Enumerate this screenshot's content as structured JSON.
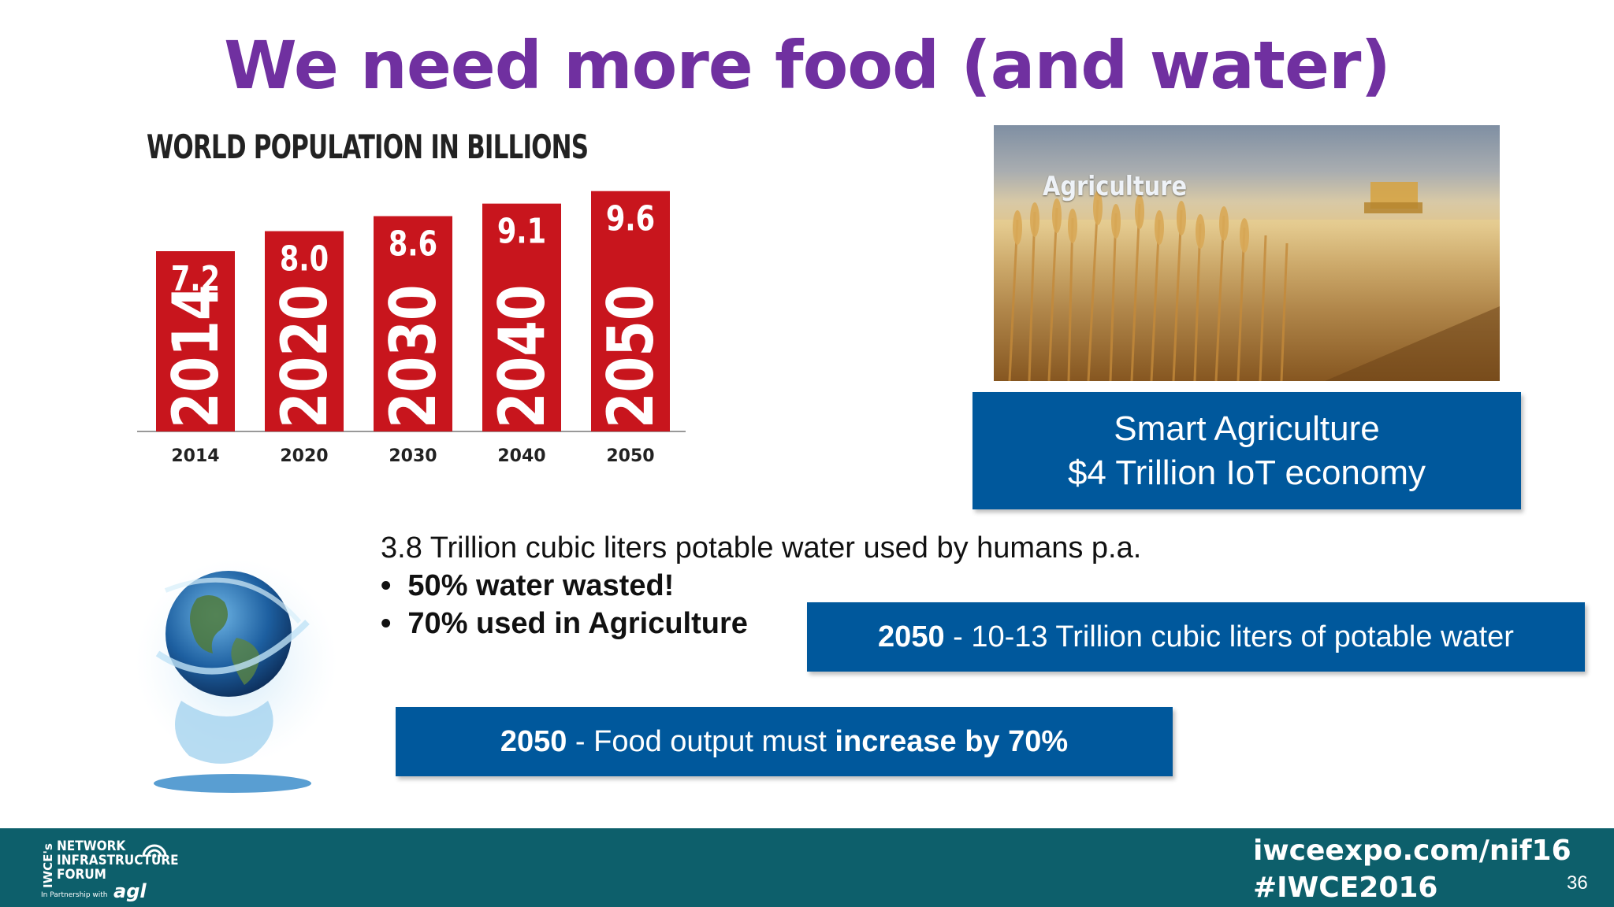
{
  "slide": {
    "title": "We need more food  (and water)",
    "page_number": "36"
  },
  "chart": {
    "title": "WORLD POPULATION IN BILLIONS"
  },
  "chart_data": {
    "type": "bar",
    "title": "WORLD POPULATION IN BILLIONS",
    "categories": [
      "2014",
      "2020",
      "2030",
      "2040",
      "2050"
    ],
    "values": [
      7.2,
      8.0,
      8.6,
      9.1,
      9.6
    ],
    "value_labels": [
      "7.2",
      "8.0",
      "8.6",
      "9.1",
      "9.6"
    ],
    "xlabel": "",
    "ylabel": "",
    "ylim": [
      0,
      10
    ],
    "grid": false,
    "bar_color": "#c8151d"
  },
  "photo": {
    "label": "Agriculture"
  },
  "smart_box": {
    "line1": "Smart Agriculture",
    "line2": "$4 Trillion IoT economy"
  },
  "water": {
    "headline": "3.8 Trillion cubic liters potable water used by humans p.a.",
    "bullets": [
      "50% water wasted!",
      "70% used in Agriculture"
    ]
  },
  "water_box": {
    "year": "2050",
    "text": " - 10-13 Trillion cubic liters of potable water"
  },
  "food_box": {
    "year": "2050",
    "text_before": " - Food output must ",
    "text_bold": "increase by 70%"
  },
  "footer": {
    "logo_line1": "NETWORK",
    "logo_line2": "INFRASTRUCTURE",
    "logo_line3": "FORUM",
    "logo_prefix": "IWCE's",
    "partner_text": "In Partnership with",
    "partner_logo": "agl",
    "url": "iwceexpo.com/nif16",
    "hashtag": "#IWCE2016"
  },
  "colors": {
    "title": "#7030a0",
    "box_blue": "#00589c",
    "footer_teal": "#0d5f6b",
    "bar_red": "#c8151d"
  }
}
